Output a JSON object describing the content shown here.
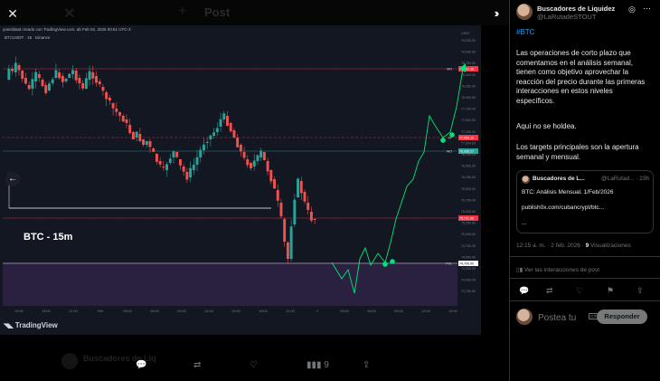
{
  "background": {
    "post_title": "Post",
    "ghost_user": "Buscadores de Liq"
  },
  "modal": {
    "close_icon": "close-icon",
    "collapse_icon": "double-chevron-right-icon"
  },
  "chart_panel": {
    "header": "yanisblaat creado con TradingView.com, ab Feb 02, 2026 00:61 UTC-3",
    "symbol": "BTCUSDT · 15 · Binance",
    "btc_label": "BTC - 15m",
    "logo_text": "TradingView",
    "price_axis_currency": "USDT",
    "price_ticks": [
      "79,250.00",
      "79,000.00",
      "78,750.00",
      "78,500.00",
      "78,250.00",
      "78,000.00",
      "77,750.00",
      "77,500.00",
      "77,250.00",
      "77,000.00",
      "76,750.00",
      "76,500.00",
      "76,250.00",
      "76,000.00",
      "75,750.00",
      "75,500.00",
      "75,250.00",
      "75,000.00",
      "74,750.00",
      "74,500.00",
      "74,250.00",
      "74,000.00",
      "73,750.00"
    ],
    "time_ticks": [
      "15:00",
      "18:00",
      "21:00",
      "Feb",
      "03:00",
      "06:00",
      "09:00",
      "12:00",
      "15:00",
      "18:00",
      "21:00",
      "2",
      "03:00",
      "06:00",
      "09:00",
      "12:00",
      "15:00"
    ],
    "levels": [
      {
        "tag": "MO",
        "price": "78,791.36",
        "color": "#f23645"
      },
      {
        "tag": "AT",
        "price": "77,050.10",
        "color": "#f23645"
      },
      {
        "tag": "WO",
        "price": "76,958.27",
        "color": "#26a69a"
      },
      {
        "tag": "",
        "price": "75,721.06",
        "color": "#f23645"
      },
      {
        "tag": "PVL",
        "price": "74,700.00",
        "color": "#ffffff"
      }
    ],
    "accent": "#00e676"
  },
  "image_actions": {
    "reply_icon": "reply-icon",
    "repost_icon": "repost-icon",
    "like_icon": "heart-icon",
    "views_count": "9",
    "share_icon": "share-icon"
  },
  "post": {
    "display_name": "Buscadores de Liquidez",
    "handle": "@LaRutadeSTOUT",
    "hashtag": "#BTC",
    "paragraphs": [
      "Las operaciones de corto plazo que comentamos en el análisis semanal, tienen como objetivo aprovechar la reacción del precio durante las primeras interacciones en estos niveles específicos.",
      "Aquí no se holdea.",
      "Los targets principales son la apertura semanal y mensual."
    ],
    "quote": {
      "name": "Buscadores de L...",
      "handle": "@LaRutad... · 23h",
      "title": "BTC: Análisis Mensual. 1/Feb/2026",
      "link": "publish0x.com/cubancrypt/btc...",
      "ellipsis": "..."
    },
    "timestamp": "12:15 a. m. · 2 feb. 2026 ·",
    "views_count": "9",
    "views_label": "Visualizaciones",
    "interactions_label": "Ver las interacciones de post",
    "reply_placeholder": "Postea tu",
    "reply_button": "Responder",
    "gif_label": "GIF"
  }
}
